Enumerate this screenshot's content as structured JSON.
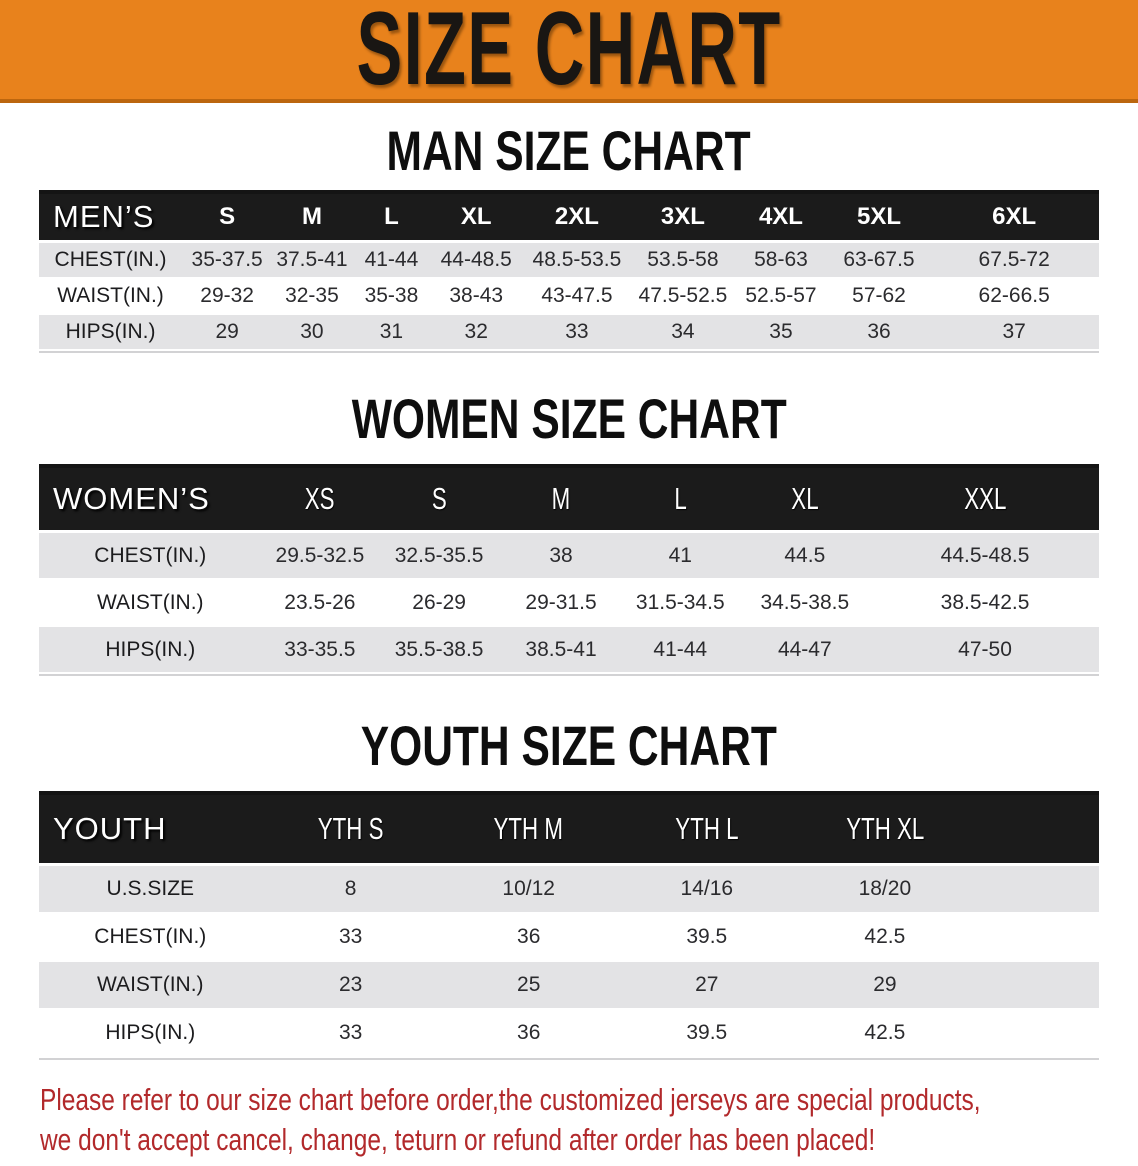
{
  "banner": {
    "title": "SIZE CHART"
  },
  "sections": [
    {
      "heading": "MAN SIZE CHART",
      "table": {
        "label": "MEN’S",
        "columns": [
          "S",
          "M",
          "L",
          "XL",
          "2XL",
          "3XL",
          "4XL",
          "5XL",
          "6XL"
        ],
        "rows": [
          {
            "label": "CHEST(IN.)",
            "values": [
              "35-37.5",
              "37.5-41",
              "41-44",
              "44-48.5",
              "48.5-53.5",
              "53.5-58",
              "58-63",
              "63-67.5",
              "67.5-72"
            ]
          },
          {
            "label": "WAIST(IN.)",
            "values": [
              "29-32",
              "32-35",
              "35-38",
              "38-43",
              "43-47.5",
              "47.5-52.5",
              "52.5-57",
              "57-62",
              "62-66.5"
            ]
          },
          {
            "label": "HIPS(IN.)",
            "values": [
              "29",
              "30",
              "31",
              "32",
              "33",
              "34",
              "35",
              "36",
              "37"
            ]
          }
        ]
      }
    },
    {
      "heading": "WOMEN SIZE CHART",
      "table": {
        "label": "WOMEN’S",
        "columns": [
          "XS",
          "S",
          "M",
          "L",
          "XL",
          "XXL"
        ],
        "rows": [
          {
            "label": "CHEST(IN.)",
            "values": [
              "29.5-32.5",
              "32.5-35.5",
              "38",
              "41",
              "44.5",
              "44.5-48.5"
            ]
          },
          {
            "label": "WAIST(IN.)",
            "values": [
              "23.5-26",
              "26-29",
              "29-31.5",
              "31.5-34.5",
              "34.5-38.5",
              "38.5-42.5"
            ]
          },
          {
            "label": "HIPS(IN.)",
            "values": [
              "33-35.5",
              "35.5-38.5",
              "38.5-41",
              "41-44",
              "44-47",
              "47-50"
            ]
          }
        ]
      }
    },
    {
      "heading": "YOUTH SIZE CHART",
      "table": {
        "label": "YOUTH",
        "columns": [
          "YTH S",
          "YTH M",
          "YTH L",
          "YTH XL"
        ],
        "rows": [
          {
            "label": "U.S.SIZE",
            "values": [
              "8",
              "10/12",
              "14/16",
              "18/20"
            ]
          },
          {
            "label": "CHEST(IN.)",
            "values": [
              "33",
              "36",
              "39.5",
              "42.5"
            ]
          },
          {
            "label": "WAIST(IN.)",
            "values": [
              "23",
              "25",
              "27",
              "29"
            ]
          },
          {
            "label": "HIPS(IN.)",
            "values": [
              "33",
              "36",
              "39.5",
              "42.5"
            ]
          }
        ]
      }
    }
  ],
  "disclaimer": {
    "line1": "Please refer to our size chart before order,the customized jerseys are special products,",
    "line2": "we don't accept cancel, change, teturn or refund after order has been placed!"
  },
  "colors": {
    "banner-orange": "#E8821C",
    "banner-edge": "#BC660E",
    "header-black": "#1B1B1B",
    "stripe-gray": "#E3E3E5",
    "disclaimer-red": "#B2292B"
  }
}
